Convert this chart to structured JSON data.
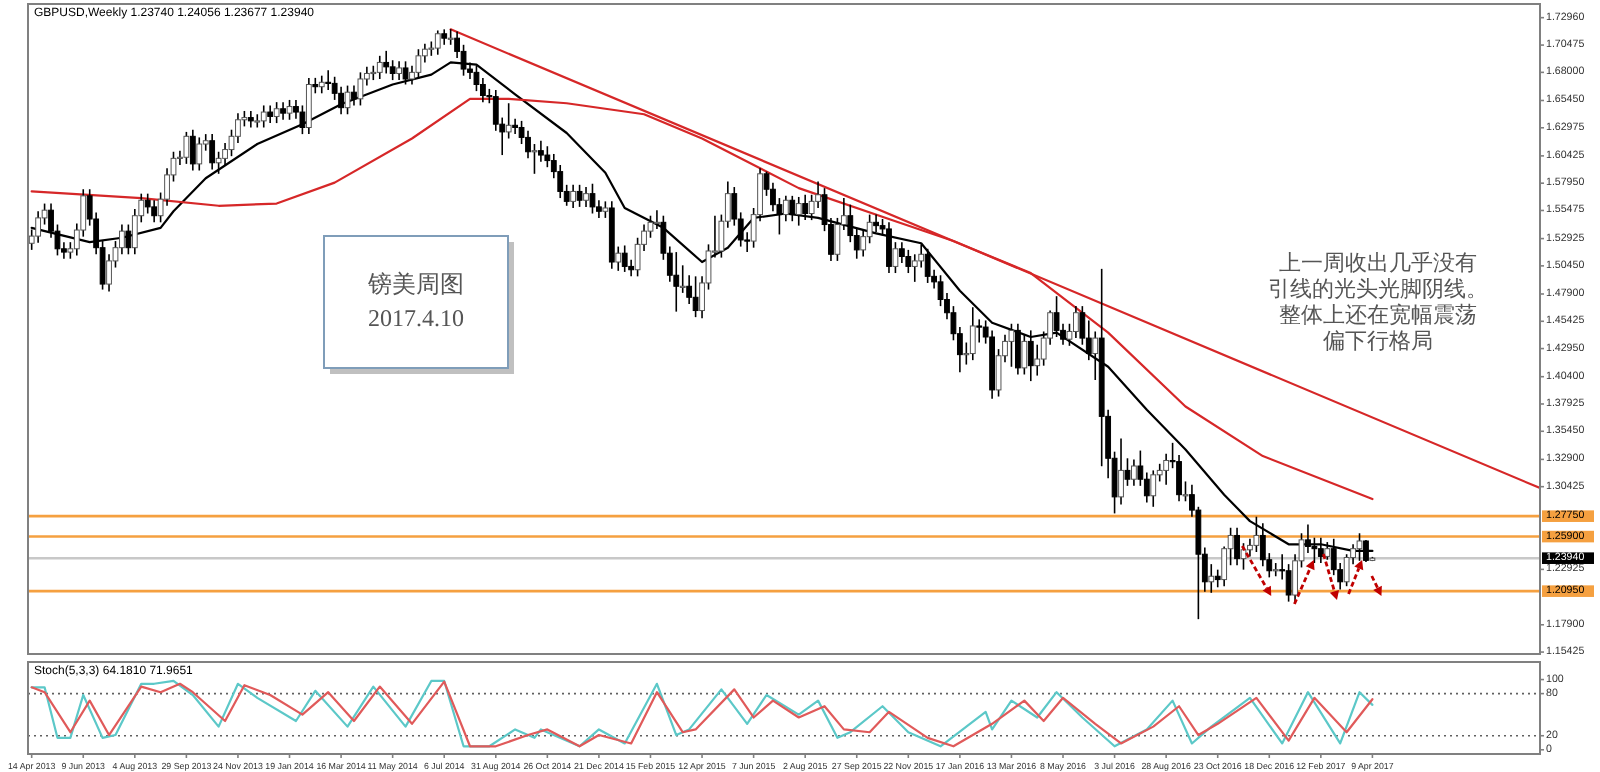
{
  "chart_data": [
    {
      "type": "candlestick",
      "title": "GBPUSD,Weekly  1.23740 1.24056 1.23677 1.23940",
      "x": [
        "2013-04-14",
        "2013-04-21",
        "2013-04-28",
        "2013-05-05",
        "2013-05-12",
        "2013-05-19",
        "2013-05-26",
        "2013-06-02",
        "2013-06-09",
        "2013-06-16",
        "2013-06-23",
        "2013-06-30",
        "2013-07-07",
        "2013-07-14",
        "2013-07-21",
        "2013-07-28",
        "2013-08-04",
        "2013-08-11",
        "2013-08-18",
        "2013-08-25",
        "2013-09-01",
        "2013-09-08",
        "2013-09-15",
        "2013-09-22",
        "2013-09-29",
        "2013-10-06",
        "2013-10-13",
        "2013-10-20",
        "2013-10-27",
        "2013-11-03",
        "2013-11-10",
        "2013-11-17",
        "2013-11-24",
        "2013-12-01",
        "2013-12-08",
        "2013-12-15",
        "2013-12-22",
        "2013-12-29",
        "2014-01-05",
        "2014-01-12",
        "2014-01-19",
        "2014-01-26",
        "2014-02-02",
        "2014-02-09",
        "2014-02-16",
        "2014-02-23",
        "2014-03-02",
        "2014-03-09",
        "2014-03-16",
        "2014-03-23",
        "2014-03-30",
        "2014-04-06",
        "2014-04-13",
        "2014-04-20",
        "2014-04-27",
        "2014-05-04",
        "2014-05-11",
        "2014-05-18",
        "2014-05-25",
        "2014-06-01",
        "2014-06-08",
        "2014-06-15",
        "2014-06-22",
        "2014-06-29",
        "2014-07-06",
        "2014-07-13",
        "2014-07-20",
        "2014-07-27",
        "2014-08-03",
        "2014-08-10",
        "2014-08-17",
        "2014-08-24",
        "2014-08-31",
        "2014-09-07",
        "2014-09-14",
        "2014-09-21",
        "2014-09-28",
        "2014-10-05",
        "2014-10-12",
        "2014-10-19",
        "2014-10-26",
        "2014-11-02",
        "2014-11-09",
        "2014-11-16",
        "2014-11-23",
        "2014-11-30",
        "2014-12-07",
        "2014-12-14",
        "2014-12-21",
        "2014-12-28",
        "2015-01-04",
        "2015-01-11",
        "2015-01-18",
        "2015-01-25",
        "2015-02-01",
        "2015-02-08",
        "2015-02-15",
        "2015-02-22",
        "2015-03-01",
        "2015-03-08",
        "2015-03-15",
        "2015-03-22",
        "2015-03-29",
        "2015-04-05",
        "2015-04-12",
        "2015-04-19",
        "2015-04-26",
        "2015-05-03",
        "2015-05-10",
        "2015-05-17",
        "2015-05-24",
        "2015-05-31",
        "2015-06-07",
        "2015-06-14",
        "2015-06-21",
        "2015-06-28",
        "2015-07-05",
        "2015-07-12",
        "2015-07-19",
        "2015-07-26",
        "2015-08-02",
        "2015-08-09",
        "2015-08-16",
        "2015-08-23",
        "2015-08-30",
        "2015-09-06",
        "2015-09-13",
        "2015-09-20",
        "2015-09-27",
        "2015-10-04",
        "2015-10-11",
        "2015-10-18",
        "2015-10-25",
        "2015-11-01",
        "2015-11-08",
        "2015-11-15",
        "2015-11-22",
        "2015-11-29",
        "2015-12-06",
        "2015-12-13",
        "2015-12-20",
        "2015-12-27",
        "2016-01-03",
        "2016-01-10",
        "2016-01-17",
        "2016-01-24",
        "2016-01-31",
        "2016-02-07",
        "2016-02-14",
        "2016-02-21",
        "2016-02-28",
        "2016-03-06",
        "2016-03-13",
        "2016-03-20",
        "2016-03-27",
        "2016-04-03",
        "2016-04-10",
        "2016-04-17",
        "2016-04-24",
        "2016-05-01",
        "2016-05-08",
        "2016-05-15",
        "2016-05-22",
        "2016-05-29",
        "2016-06-05",
        "2016-06-12",
        "2016-06-19",
        "2016-06-26",
        "2016-07-03",
        "2016-07-10",
        "2016-07-17",
        "2016-07-24",
        "2016-07-31",
        "2016-08-07",
        "2016-08-14",
        "2016-08-21",
        "2016-08-28",
        "2016-09-04",
        "2016-09-11",
        "2016-09-18",
        "2016-09-25",
        "2016-10-02",
        "2016-10-09",
        "2016-10-16",
        "2016-10-23",
        "2016-10-30",
        "2016-11-06",
        "2016-11-13",
        "2016-11-20",
        "2016-11-27",
        "2016-12-04",
        "2016-12-11",
        "2016-12-18",
        "2016-12-25",
        "2017-01-01",
        "2017-01-08",
        "2017-01-15",
        "2017-01-22",
        "2017-01-29",
        "2017-02-05",
        "2017-02-12",
        "2017-02-19",
        "2017-02-26",
        "2017-03-05",
        "2017-03-12",
        "2017-03-19",
        "2017-03-26",
        "2017-04-02",
        "2017-04-09"
      ],
      "ohlc": [
        [
          1.525,
          1.5375,
          1.519,
          1.5315
        ],
        [
          1.5315,
          1.554,
          1.5255,
          1.548
        ],
        [
          1.548,
          1.561,
          1.542,
          1.555
        ],
        [
          1.555,
          1.561,
          1.53,
          1.536
        ],
        [
          1.536,
          1.542,
          1.514,
          1.52
        ],
        [
          1.52,
          1.526,
          1.511,
          1.517
        ],
        [
          1.517,
          1.526,
          1.511,
          1.52
        ],
        [
          1.52,
          1.543,
          1.514,
          1.537
        ],
        [
          1.537,
          1.574,
          1.531,
          1.568
        ],
        [
          1.568,
          1.574,
          1.541,
          1.547
        ],
        [
          1.547,
          1.553,
          1.515,
          1.521
        ],
        [
          1.521,
          1.527,
          1.483,
          1.488
        ],
        [
          1.488,
          1.515,
          1.4813,
          1.509
        ],
        [
          1.509,
          1.527,
          1.503,
          1.521
        ],
        [
          1.521,
          1.542,
          1.515,
          1.536
        ],
        [
          1.536,
          1.542,
          1.515,
          1.521
        ],
        [
          1.521,
          1.556,
          1.515,
          1.55
        ],
        [
          1.55,
          1.57,
          1.544,
          1.564
        ],
        [
          1.564,
          1.57,
          1.552,
          1.558
        ],
        [
          1.558,
          1.564,
          1.544,
          1.55
        ],
        [
          1.55,
          1.571,
          1.544,
          1.565
        ],
        [
          1.565,
          1.593,
          1.559,
          1.587
        ],
        [
          1.587,
          1.608,
          1.581,
          1.602
        ],
        [
          1.602,
          1.609,
          1.596,
          1.603
        ],
        [
          1.603,
          1.626,
          1.597,
          1.622
        ],
        [
          1.622,
          1.628,
          1.591,
          1.597
        ],
        [
          1.597,
          1.621,
          1.591,
          1.615
        ],
        [
          1.615,
          1.624,
          1.609,
          1.618
        ],
        [
          1.618,
          1.624,
          1.592,
          1.598
        ],
        [
          1.598,
          1.608,
          1.588,
          1.602
        ],
        [
          1.602,
          1.616,
          1.596,
          1.61
        ],
        [
          1.61,
          1.628,
          1.604,
          1.622
        ],
        [
          1.622,
          1.643,
          1.616,
          1.637
        ],
        [
          1.637,
          1.645,
          1.631,
          1.639
        ],
        [
          1.639,
          1.645,
          1.63,
          1.636
        ],
        [
          1.636,
          1.642,
          1.63,
          1.636
        ],
        [
          1.636,
          1.65,
          1.63,
          1.644
        ],
        [
          1.644,
          1.65,
          1.634,
          1.64
        ],
        [
          1.64,
          1.653,
          1.634,
          1.647
        ],
        [
          1.647,
          1.653,
          1.637,
          1.643
        ],
        [
          1.643,
          1.655,
          1.637,
          1.649
        ],
        [
          1.649,
          1.655,
          1.638,
          1.644
        ],
        [
          1.644,
          1.65,
          1.624,
          1.63
        ],
        [
          1.63,
          1.675,
          1.624,
          1.669
        ],
        [
          1.669,
          1.675,
          1.661,
          1.667
        ],
        [
          1.667,
          1.677,
          1.661,
          1.671
        ],
        [
          1.671,
          1.682,
          1.664,
          1.67
        ],
        [
          1.67,
          1.676,
          1.655,
          1.661
        ],
        [
          1.661,
          1.667,
          1.642,
          1.648
        ],
        [
          1.648,
          1.668,
          1.642,
          1.662
        ],
        [
          1.662,
          1.668,
          1.65,
          1.656
        ],
        [
          1.656,
          1.68,
          1.65,
          1.674
        ],
        [
          1.674,
          1.685,
          1.668,
          1.679
        ],
        [
          1.679,
          1.686,
          1.673,
          1.68
        ],
        [
          1.68,
          1.695,
          1.674,
          1.689
        ],
        [
          1.689,
          1.6995,
          1.679,
          1.685
        ],
        [
          1.685,
          1.691,
          1.673,
          1.679
        ],
        [
          1.679,
          1.69,
          1.673,
          1.684
        ],
        [
          1.684,
          1.69,
          1.669,
          1.674
        ],
        [
          1.674,
          1.686,
          1.669,
          1.68
        ],
        [
          1.68,
          1.701,
          1.674,
          1.695
        ],
        [
          1.695,
          1.706,
          1.689,
          1.701
        ],
        [
          1.701,
          1.708,
          1.695,
          1.702
        ],
        [
          1.702,
          1.718,
          1.696,
          1.715
        ],
        [
          1.715,
          1.719,
          1.705,
          1.711
        ],
        [
          1.711,
          1.7192,
          1.705,
          1.711
        ],
        [
          1.711,
          1.717,
          1.693,
          1.699
        ],
        [
          1.699,
          1.705,
          1.677,
          1.683
        ],
        [
          1.683,
          1.689,
          1.674,
          1.68
        ],
        [
          1.68,
          1.686,
          1.663,
          1.669
        ],
        [
          1.669,
          1.675,
          1.653,
          1.659
        ],
        [
          1.659,
          1.665,
          1.652,
          1.658
        ],
        [
          1.658,
          1.664,
          1.627,
          1.633
        ],
        [
          1.633,
          1.639,
          1.605,
          1.626
        ],
        [
          1.626,
          1.652,
          1.62,
          1.632
        ],
        [
          1.632,
          1.638,
          1.624,
          1.63
        ],
        [
          1.63,
          1.636,
          1.615,
          1.621
        ],
        [
          1.621,
          1.627,
          1.602,
          1.608
        ],
        [
          1.608,
          1.615,
          1.588,
          1.609
        ],
        [
          1.609,
          1.618,
          1.599,
          1.605
        ],
        [
          1.605,
          1.613,
          1.594,
          1.6
        ],
        [
          1.6,
          1.606,
          1.584,
          1.59
        ],
        [
          1.59,
          1.596,
          1.566,
          1.572
        ],
        [
          1.572,
          1.578,
          1.559,
          1.563
        ],
        [
          1.563,
          1.578,
          1.557,
          1.572
        ],
        [
          1.572,
          1.578,
          1.558,
          1.564
        ],
        [
          1.564,
          1.576,
          1.558,
          1.57
        ],
        [
          1.57,
          1.579,
          1.552,
          1.558
        ],
        [
          1.558,
          1.564,
          1.548,
          1.554
        ],
        [
          1.554,
          1.563,
          1.548,
          1.557
        ],
        [
          1.557,
          1.563,
          1.502,
          1.508
        ],
        [
          1.508,
          1.522,
          1.5,
          1.516
        ],
        [
          1.516,
          1.523,
          1.499,
          1.504
        ],
        [
          1.504,
          1.51,
          1.495,
          1.501
        ],
        [
          1.501,
          1.53,
          1.495,
          1.524
        ],
        [
          1.524,
          1.542,
          1.518,
          1.536
        ],
        [
          1.536,
          1.55,
          1.53,
          1.544
        ],
        [
          1.544,
          1.555,
          1.538,
          1.544
        ],
        [
          1.544,
          1.55,
          1.51,
          1.516
        ],
        [
          1.516,
          1.522,
          1.49,
          1.496
        ],
        [
          1.496,
          1.517,
          1.463,
          1.486
        ],
        [
          1.486,
          1.505,
          1.48,
          1.486
        ],
        [
          1.486,
          1.496,
          1.47,
          1.476
        ],
        [
          1.476,
          1.495,
          1.458,
          1.464
        ],
        [
          1.464,
          1.495,
          1.457,
          1.489
        ],
        [
          1.489,
          1.524,
          1.483,
          1.518
        ],
        [
          1.518,
          1.55,
          1.512,
          1.518
        ],
        [
          1.518,
          1.551,
          1.512,
          1.545
        ],
        [
          1.545,
          1.581,
          1.539,
          1.57
        ],
        [
          1.57,
          1.576,
          1.541,
          1.547
        ],
        [
          1.547,
          1.553,
          1.522,
          1.528
        ],
        [
          1.528,
          1.535,
          1.517,
          1.527
        ],
        [
          1.527,
          1.557,
          1.521,
          1.551
        ],
        [
          1.551,
          1.593,
          1.545,
          1.588
        ],
        [
          1.588,
          1.59,
          1.568,
          1.574
        ],
        [
          1.574,
          1.58,
          1.554,
          1.56
        ],
        [
          1.56,
          1.566,
          1.533,
          1.551
        ],
        [
          1.551,
          1.568,
          1.545,
          1.564
        ],
        [
          1.564,
          1.568,
          1.545,
          1.551
        ],
        [
          1.551,
          1.567,
          1.541,
          1.561
        ],
        [
          1.561,
          1.569,
          1.546,
          1.552
        ],
        [
          1.552,
          1.569,
          1.546,
          1.563
        ],
        [
          1.563,
          1.581,
          1.557,
          1.569
        ],
        [
          1.569,
          1.575,
          1.536,
          1.542
        ],
        [
          1.542,
          1.548,
          1.509,
          1.515
        ],
        [
          1.515,
          1.548,
          1.509,
          1.542
        ],
        [
          1.542,
          1.566,
          1.537,
          1.55
        ],
        [
          1.55,
          1.56,
          1.526,
          1.532
        ],
        [
          1.532,
          1.538,
          1.511,
          1.519
        ],
        [
          1.519,
          1.537,
          1.513,
          1.531
        ],
        [
          1.531,
          1.551,
          1.525,
          1.544
        ],
        [
          1.544,
          1.551,
          1.535,
          1.541
        ],
        [
          1.541,
          1.547,
          1.532,
          1.538
        ],
        [
          1.538,
          1.544,
          1.498,
          1.504
        ],
        [
          1.504,
          1.526,
          1.498,
          1.52
        ],
        [
          1.52,
          1.526,
          1.507,
          1.513
        ],
        [
          1.513,
          1.519,
          1.498,
          1.504
        ],
        [
          1.504,
          1.515,
          1.49,
          1.509
        ],
        [
          1.509,
          1.524,
          1.503,
          1.515
        ],
        [
          1.515,
          1.52,
          1.489,
          1.495
        ],
        [
          1.495,
          1.501,
          1.484,
          1.49
        ],
        [
          1.49,
          1.496,
          1.468,
          1.474
        ],
        [
          1.474,
          1.48,
          1.456,
          1.462
        ],
        [
          1.462,
          1.468,
          1.437,
          1.443
        ],
        [
          1.443,
          1.449,
          1.408,
          1.424
        ],
        [
          1.424,
          1.435,
          1.415,
          1.425
        ],
        [
          1.425,
          1.467,
          1.419,
          1.45
        ],
        [
          1.45,
          1.456,
          1.435,
          1.449
        ],
        [
          1.449,
          1.455,
          1.434,
          1.44
        ],
        [
          1.44,
          1.446,
          1.384,
          1.392
        ],
        [
          1.392,
          1.429,
          1.386,
          1.423
        ],
        [
          1.423,
          1.442,
          1.417,
          1.436
        ],
        [
          1.436,
          1.452,
          1.413,
          1.446
        ],
        [
          1.446,
          1.452,
          1.406,
          1.412
        ],
        [
          1.412,
          1.442,
          1.406,
          1.436
        ],
        [
          1.436,
          1.446,
          1.4,
          1.414
        ],
        [
          1.414,
          1.433,
          1.405,
          1.42
        ],
        [
          1.42,
          1.445,
          1.414,
          1.439
        ],
        [
          1.439,
          1.464,
          1.433,
          1.462
        ],
        [
          1.462,
          1.477,
          1.44,
          1.446
        ],
        [
          1.446,
          1.452,
          1.433,
          1.438
        ],
        [
          1.438,
          1.452,
          1.432,
          1.445
        ],
        [
          1.445,
          1.468,
          1.439,
          1.462
        ],
        [
          1.462,
          1.468,
          1.433,
          1.439
        ],
        [
          1.439,
          1.455,
          1.419,
          1.425
        ],
        [
          1.425,
          1.445,
          1.401,
          1.439
        ],
        [
          1.439,
          1.5018,
          1.3228,
          1.368
        ],
        [
          1.368,
          1.374,
          1.312,
          1.33
        ],
        [
          1.33,
          1.336,
          1.28,
          1.295
        ],
        [
          1.295,
          1.348,
          1.288,
          1.319
        ],
        [
          1.319,
          1.33,
          1.305,
          1.311
        ],
        [
          1.311,
          1.329,
          1.305,
          1.323
        ],
        [
          1.323,
          1.337,
          1.305,
          1.311
        ],
        [
          1.311,
          1.317,
          1.29,
          1.296
        ],
        [
          1.296,
          1.319,
          1.286,
          1.315
        ],
        [
          1.315,
          1.325,
          1.309,
          1.319
        ],
        [
          1.319,
          1.334,
          1.306,
          1.328
        ],
        [
          1.328,
          1.344,
          1.321,
          1.327
        ],
        [
          1.327,
          1.333,
          1.291,
          1.297
        ],
        [
          1.297,
          1.309,
          1.291,
          1.297
        ],
        [
          1.297,
          1.306,
          1.277,
          1.283
        ],
        [
          1.283,
          1.286,
          1.1841,
          1.243
        ],
        [
          1.243,
          1.249,
          1.209,
          1.218
        ],
        [
          1.218,
          1.234,
          1.208,
          1.223
        ],
        [
          1.223,
          1.229,
          1.213,
          1.22
        ],
        [
          1.22,
          1.25,
          1.214,
          1.248
        ],
        [
          1.248,
          1.267,
          1.233,
          1.26
        ],
        [
          1.26,
          1.267,
          1.233,
          1.239
        ],
        [
          1.239,
          1.253,
          1.229,
          1.247
        ],
        [
          1.247,
          1.257,
          1.241,
          1.251
        ],
        [
          1.251,
          1.277,
          1.245,
          1.26
        ],
        [
          1.26,
          1.271,
          1.232,
          1.238
        ],
        [
          1.238,
          1.244,
          1.222,
          1.228
        ],
        [
          1.228,
          1.235,
          1.223,
          1.229
        ],
        [
          1.229,
          1.243,
          1.22,
          1.228
        ],
        [
          1.228,
          1.234,
          1.2,
          1.206
        ],
        [
          1.206,
          1.243,
          1.199,
          1.237
        ],
        [
          1.237,
          1.262,
          1.231,
          1.256
        ],
        [
          1.256,
          1.27,
          1.244,
          1.25
        ],
        [
          1.25,
          1.258,
          1.235,
          1.248
        ],
        [
          1.248,
          1.258,
          1.235,
          1.241
        ],
        [
          1.241,
          1.254,
          1.238,
          1.248
        ],
        [
          1.248,
          1.257,
          1.224,
          1.229
        ],
        [
          1.229,
          1.235,
          1.211,
          1.218
        ],
        [
          1.218,
          1.243,
          1.214,
          1.24
        ],
        [
          1.24,
          1.252,
          1.234,
          1.248
        ],
        [
          1.248,
          1.262,
          1.237,
          1.255
        ],
        [
          1.255,
          1.256,
          1.236,
          1.2374
        ],
        [
          1.2374,
          1.24056,
          1.23677,
          1.2394
        ]
      ],
      "series": [
        {
          "type": "line",
          "color": "#000000",
          "x": [
            "2013-04-14",
            "2013-06-16",
            "2013-07-21",
            "2013-09-01",
            "2013-09-15",
            "2013-10-20",
            "2013-12-15",
            "2014-02-02",
            "2014-03-16",
            "2014-05-11",
            "2014-06-22",
            "2014-07-13",
            "2014-08-10",
            "2014-09-21",
            "2014-11-16",
            "2014-12-28",
            "2015-01-18",
            "2015-03-01",
            "2015-04-12",
            "2015-05-10",
            "2015-06-07",
            "2015-07-12",
            "2015-08-16",
            "2015-10-18",
            "2015-12-06",
            "2016-01-17",
            "2016-02-21",
            "2016-04-03",
            "2016-05-01",
            "2016-06-26",
            "2016-08-07",
            "2016-09-18",
            "2016-10-30",
            "2016-11-27",
            "2017-01-08",
            "2017-02-12",
            "2017-03-19",
            "2017-04-09"
          ],
          "values": [
            1.539,
            1.526,
            1.53,
            1.539,
            1.554,
            1.584,
            1.615,
            1.633,
            1.651,
            1.669,
            1.678,
            1.689,
            1.687,
            1.66,
            1.625,
            1.589,
            1.557,
            1.539,
            1.508,
            1.521,
            1.548,
            1.552,
            1.548,
            1.534,
            1.525,
            1.482,
            1.453,
            1.44,
            1.444,
            1.413,
            1.374,
            1.338,
            1.297,
            1.273,
            1.252,
            1.252,
            1.246,
            1.246
          ]
        },
        {
          "type": "line",
          "color": "#d62728",
          "x": [
            "2013-04-14",
            "2013-08-11",
            "2013-11-03",
            "2014-01-05",
            "2014-03-09",
            "2014-06-01",
            "2014-08-03",
            "2014-09-14",
            "2014-11-16",
            "2015-02-08",
            "2015-04-12",
            "2015-07-26",
            "2015-11-08",
            "2016-01-10",
            "2016-04-03",
            "2016-06-26",
            "2016-09-18",
            "2016-12-11",
            "2017-04-09"
          ],
          "values": [
            1.572,
            1.566,
            1.559,
            1.561,
            1.58,
            1.62,
            1.656,
            1.656,
            1.652,
            1.642,
            1.62,
            1.575,
            1.545,
            1.527,
            1.498,
            1.444,
            1.377,
            1.332,
            1.293
          ]
        },
        {
          "type": "line",
          "color": "#d62728",
          "x": [
            "2014-07-13",
            "2017-10-08"
          ],
          "values": [
            1.719,
            1.303
          ]
        }
      ],
      "xlim": [
        "2013-04-10",
        "2017-10-08"
      ],
      "ylim": [
        1.1525,
        1.742
      ],
      "yticks": [
        {
          "value": 1.7296,
          "label": "1.72960"
        },
        {
          "value": 1.70475,
          "label": "1.70475"
        },
        {
          "value": 1.68,
          "label": "1.68000"
        },
        {
          "value": 1.6545,
          "label": "1.65450"
        },
        {
          "value": 1.62975,
          "label": "1.62975"
        },
        {
          "value": 1.60425,
          "label": "1.60425"
        },
        {
          "value": 1.5795,
          "label": "1.57950"
        },
        {
          "value": 1.55475,
          "label": "1.55475"
        },
        {
          "value": 1.52925,
          "label": "1.52925"
        },
        {
          "value": 1.5045,
          "label": "1.50450"
        },
        {
          "value": 1.479,
          "label": "1.47900"
        },
        {
          "value": 1.45425,
          "label": "1.45425"
        },
        {
          "value": 1.4295,
          "label": "1.42950"
        },
        {
          "value": 1.404,
          "label": "1.40400"
        },
        {
          "value": 1.37925,
          "label": "1.37925"
        },
        {
          "value": 1.3545,
          "label": "1.35450"
        },
        {
          "value": 1.329,
          "label": "1.32900"
        },
        {
          "value": 1.30425,
          "label": "1.30425"
        },
        {
          "value": 1.22925,
          "label": "1.22925"
        },
        {
          "value": 1.179,
          "label": "1.17900"
        },
        {
          "value": 1.15425,
          "label": "1.15425"
        }
      ],
      "tick_labels": "y",
      "ref_lines": [
        {
          "axis": "y",
          "value": 1.2775,
          "label": "1.27750",
          "color": "#f5a040"
        },
        {
          "axis": "y",
          "value": 1.259,
          "label": "1.25900",
          "color": "#f5a040"
        },
        {
          "axis": "y",
          "value": 1.2394,
          "label": "1.23940",
          "color": "#c8c8c8"
        },
        {
          "axis": "y",
          "value": 1.2095,
          "label": "1.20950",
          "color": "#f5a040"
        }
      ],
      "annotations": [
        "镑美周图",
        "2017.4.10",
        "上一周收出几乎没有引线的光头光脚阴线。整体上还在宽幅震荡偏下行格局"
      ]
    },
    {
      "type": "line",
      "title": "Stoch(5,3,3) 64.1810 71.9651",
      "series": [
        {
          "color": "#5cc8c8",
          "x": [
            "2013-04-14",
            "2013-04-28",
            "2013-05-12",
            "2013-05-26",
            "2013-06-09",
            "2013-06-30",
            "2013-07-14",
            "2013-08-11",
            "2013-08-25",
            "2013-09-15",
            "2013-10-06",
            "2013-11-03",
            "2013-11-24",
            "2013-12-15",
            "2014-01-26",
            "2014-02-16",
            "2014-03-23",
            "2014-04-20",
            "2014-05-25",
            "2014-06-22",
            "2014-07-06",
            "2014-07-27",
            "2014-08-24",
            "2014-09-21",
            "2014-10-12",
            "2014-10-19",
            "2014-11-30",
            "2014-12-21",
            "2015-01-18",
            "2015-02-22",
            "2015-03-15",
            "2015-03-29",
            "2015-05-03",
            "2015-05-31",
            "2015-06-21",
            "2015-07-26",
            "2015-08-16",
            "2015-09-06",
            "2015-09-20",
            "2015-10-25",
            "2015-11-22",
            "2015-12-27",
            "2016-02-14",
            "2016-02-21",
            "2016-03-13",
            "2016-04-10",
            "2016-05-01",
            "2016-05-29",
            "2016-07-03",
            "2016-08-07",
            "2016-09-04",
            "2016-09-25",
            "2016-10-16",
            "2016-11-27",
            "2017-01-01",
            "2017-01-29",
            "2017-03-05",
            "2017-03-26",
            "2017-04-09"
          ],
          "values": [
            89,
            89,
            17,
            17,
            78,
            17,
            21,
            94,
            94,
            98,
            78,
            33,
            94,
            74,
            41,
            84,
            33,
            90,
            33,
            98,
            98,
            5,
            5,
            29,
            17,
            29,
            5,
            29,
            9,
            94,
            21,
            29,
            86,
            37,
            78,
            50,
            70,
            17,
            25,
            62,
            25,
            5,
            54,
            29,
            70,
            46,
            82,
            46,
            5,
            29,
            70,
            9,
            33,
            74,
            9,
            82,
            9,
            82,
            64
          ]
        },
        {
          "color": "#e05a5a",
          "x": [
            "2013-04-14",
            "2013-04-28",
            "2013-05-26",
            "2013-06-16",
            "2013-07-07",
            "2013-08-11",
            "2013-09-01",
            "2013-09-22",
            "2013-10-06",
            "2013-11-10",
            "2013-12-01",
            "2013-12-29",
            "2014-02-02",
            "2014-03-02",
            "2014-03-30",
            "2014-04-27",
            "2014-06-01",
            "2014-07-06",
            "2014-08-03",
            "2014-08-31",
            "2014-10-05",
            "2014-10-26",
            "2014-11-30",
            "2014-12-21",
            "2015-01-25",
            "2015-02-22",
            "2015-03-22",
            "2015-04-05",
            "2015-05-17",
            "2015-06-07",
            "2015-06-28",
            "2015-07-26",
            "2015-08-23",
            "2015-09-13",
            "2015-10-11",
            "2015-11-01",
            "2015-12-13",
            "2016-01-10",
            "2016-02-21",
            "2016-03-27",
            "2016-04-17",
            "2016-05-08",
            "2016-06-12",
            "2016-07-10",
            "2016-08-14",
            "2016-09-11",
            "2016-10-02",
            "2016-10-23",
            "2016-12-04",
            "2017-01-08",
            "2017-02-05",
            "2017-03-12",
            "2017-04-09"
          ],
          "values": [
            89,
            82,
            25,
            70,
            21,
            90,
            82,
            94,
            82,
            41,
            92,
            78,
            50,
            82,
            41,
            90,
            37,
            97,
            5,
            5,
            21,
            29,
            5,
            21,
            9,
            82,
            25,
            29,
            86,
            46,
            70,
            46,
            62,
            29,
            25,
            54,
            17,
            5,
            37,
            70,
            41,
            74,
            37,
            9,
            33,
            62,
            21,
            37,
            74,
            13,
            74,
            25,
            72
          ]
        }
      ],
      "xlim": [
        "2013-04-10",
        "2017-10-08"
      ],
      "ylim": [
        -6,
        125
      ],
      "yticks": [
        0,
        20,
        80,
        100
      ],
      "xticks": [
        {
          "value": "2013-04-14",
          "label": "14 Apr 2013"
        },
        {
          "value": "2013-06-09",
          "label": "9 Jun 2013"
        },
        {
          "value": "2013-08-04",
          "label": "4 Aug 2013"
        },
        {
          "value": "2013-09-29",
          "label": "29 Sep 2013"
        },
        {
          "value": "2013-11-24",
          "label": "24 Nov 2013"
        },
        {
          "value": "2014-01-19",
          "label": "19 Jan 2014"
        },
        {
          "value": "2014-03-16",
          "label": "16 Mar 2014"
        },
        {
          "value": "2014-05-11",
          "label": "11 May 2014"
        },
        {
          "value": "2014-07-06",
          "label": "6 Jul 2014"
        },
        {
          "value": "2014-08-31",
          "label": "31 Aug 2014"
        },
        {
          "value": "2014-10-26",
          "label": "26 Oct 2014"
        },
        {
          "value": "2014-12-21",
          "label": "21 Dec 2014"
        },
        {
          "value": "2015-02-15",
          "label": "15 Feb 2015"
        },
        {
          "value": "2015-04-12",
          "label": "12 Apr 2015"
        },
        {
          "value": "2015-06-07",
          "label": "7 Jun 2015"
        },
        {
          "value": "2015-08-02",
          "label": "2 Aug 2015"
        },
        {
          "value": "2015-09-27",
          "label": "27 Sep 2015"
        },
        {
          "value": "2015-11-22",
          "label": "22 Nov 2015"
        },
        {
          "value": "2016-01-17",
          "label": "17 Jan 2016"
        },
        {
          "value": "2016-03-13",
          "label": "13 Mar 2016"
        },
        {
          "value": "2016-05-08",
          "label": "8 May 2016"
        },
        {
          "value": "2016-07-03",
          "label": "3 Jul 2016"
        },
        {
          "value": "2016-08-28",
          "label": "28 Aug 2016"
        },
        {
          "value": "2016-10-23",
          "label": "23 Oct 2016"
        },
        {
          "value": "2016-12-18",
          "label": "18 Dec 2016"
        },
        {
          "value": "2017-02-12",
          "label": "12 Feb 2017"
        },
        {
          "value": "2017-04-09",
          "label": "9 Apr 2017"
        }
      ],
      "ref_lines": [
        {
          "axis": "y",
          "value": 80,
          "color": "#606060",
          "line_style": "dotted"
        },
        {
          "axis": "y",
          "value": 20,
          "color": "#606060",
          "line_style": "dotted"
        }
      ]
    }
  ]
}
